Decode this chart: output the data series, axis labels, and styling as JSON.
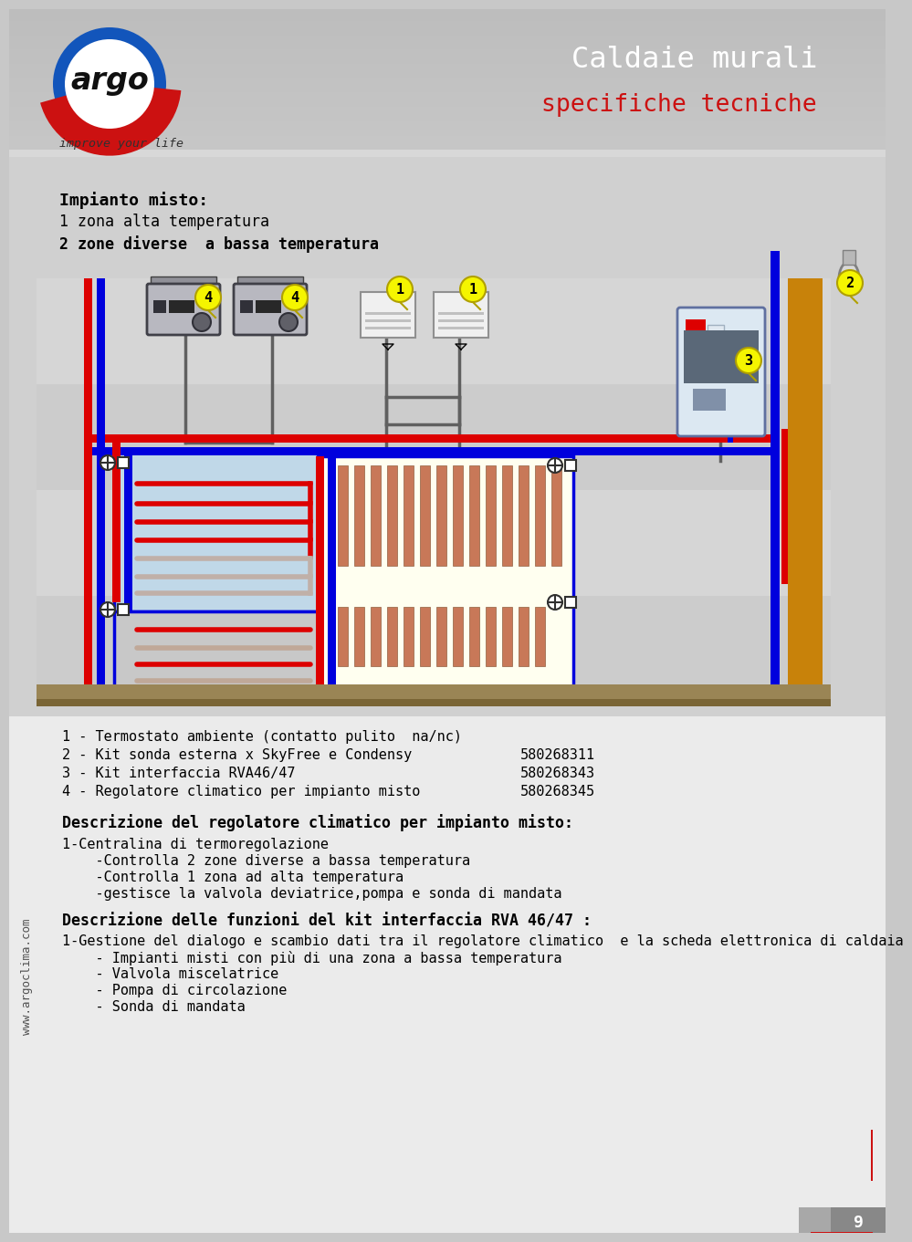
{
  "bg_color": "#c8c8c8",
  "white": "#ffffff",
  "red_pipe": "#dd0000",
  "blue_pipe": "#0000dd",
  "orange_wall": "#c8820a",
  "yellow_callout": "#f5f500",
  "header_title1": "Caldaie murali",
  "header_title2": "specifiche tecniche",
  "subtitle": "improve your life",
  "section_title": "Impianto misto:",
  "section_line1": "1 zona alta temperatura",
  "section_line2": "2 zone diverse  a bassa temperatura",
  "item1": "1 - Termostato ambiente (contatto pulito  na/nc)",
  "item2": "2 - Kit sonda esterna x SkyFree e Condensy",
  "item2_code": "580268311",
  "item3": "3 - Kit interfaccia RVA46/47",
  "item3_code": "580268343",
  "item4": "4 - Regolatore climatico per impianto misto",
  "item4_code": "580268345",
  "desc_title1": "Descrizione del regolatore climatico per impianto misto:",
  "desc1_l1": "1-Centralina di termoregolazione",
  "desc1_l2": "    -Controlla 2 zone diverse a bassa temperatura",
  "desc1_l3": "    -Controlla 1 zona ad alta temperatura",
  "desc1_l4": "    -gestisce la valvola deviatrice,pompa e sonda di mandata",
  "desc_title2": "Descrizione delle funzioni del kit interfaccia RVA 46/47 :",
  "desc2_l1": "1-Gestione del dialogo e scambio dati tra il regolatore climatico  e la scheda elettronica di caldaia",
  "desc2_l2": "    - Impianti misti con più di una zona a bassa temperatura",
  "desc2_l3": "    - Valvola miscelatrice",
  "desc2_l4": "    - Pompa di circolazione",
  "desc2_l5": "    - Sonda di mandata",
  "watermark": "www.argoclima.com",
  "page_num": "9"
}
